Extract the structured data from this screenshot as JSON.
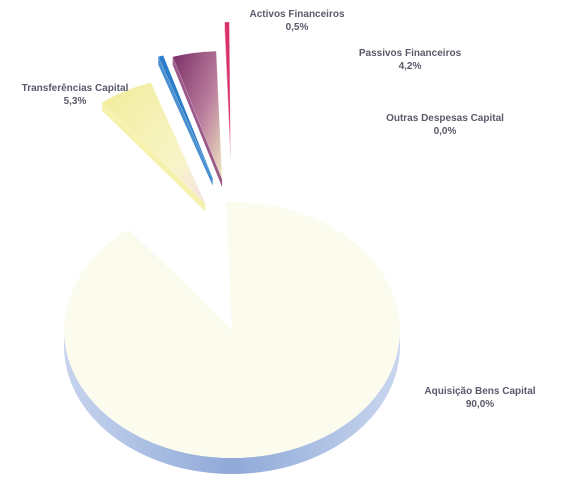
{
  "chart_data": {
    "type": "pie",
    "title": "",
    "style": "3d-exploded",
    "slices": [
      {
        "label": "Aquisição Bens Capital",
        "value": 90.0,
        "display": "90,0%",
        "color": "#fbfbee"
      },
      {
        "label": "Transferências Capital",
        "value": 5.3,
        "display": "5,3%",
        "color": "#f4ef9e"
      },
      {
        "label": "Activos Financeiros",
        "value": 0.5,
        "display": "0,5%",
        "color": "#2b7cc9"
      },
      {
        "label": "Passivos Financeiros",
        "value": 4.2,
        "display": "4,2%",
        "color": "#8a3b74"
      },
      {
        "label": "Outras Despesas Capital",
        "value": 0.0,
        "display": "0,0%",
        "color": "#d8306a"
      }
    ],
    "side_color": "#9bb4dc"
  }
}
